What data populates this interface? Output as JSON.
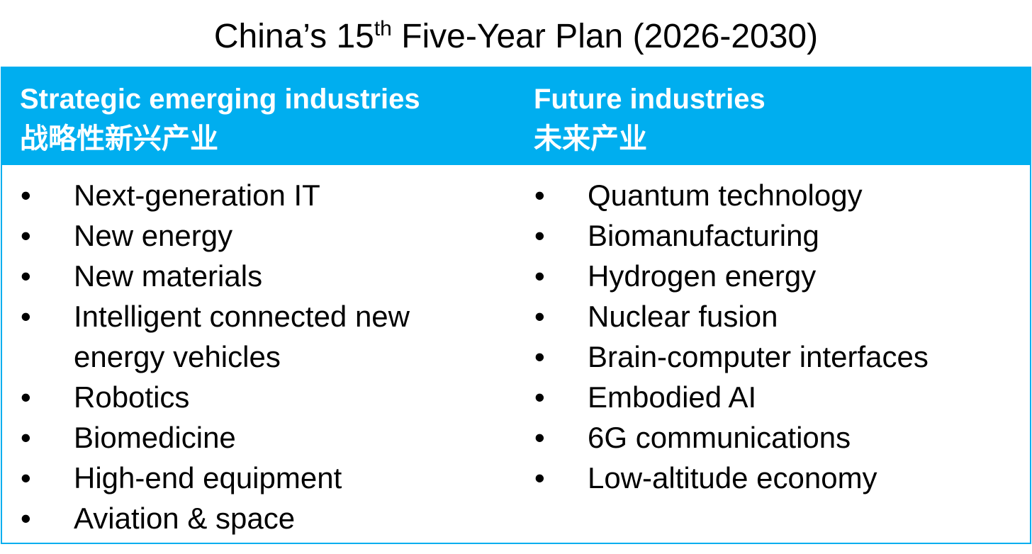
{
  "header": {
    "title": {
      "text": "China’s 15",
      "sup": "th",
      "rest": " Five-Year Plan (2026-2030)"
    }
  },
  "table": {
    "columns": [
      {
        "heading": "Strategic emerging industries",
        "heading_cn": "战略性新兴产业",
        "items": [
          "Next-generation IT",
          "New energy",
          "New materials",
          "Intelligent connected new energy vehicles",
          "Robotics",
          "Biomedicine",
          "High-end equipment",
          "Aviation & space"
        ]
      },
      {
        "heading": "Future industries",
        "heading_cn": "未来产业",
        "items": [
          "Quantum technology",
          "Biomanufacturing",
          "Hydrogen energy",
          "Nuclear fusion",
          "Brain-computer interfaces",
          "Embodied AI",
          "6G communications",
          "Low-altitude economy"
        ]
      }
    ],
    "bullet": "•"
  }
}
